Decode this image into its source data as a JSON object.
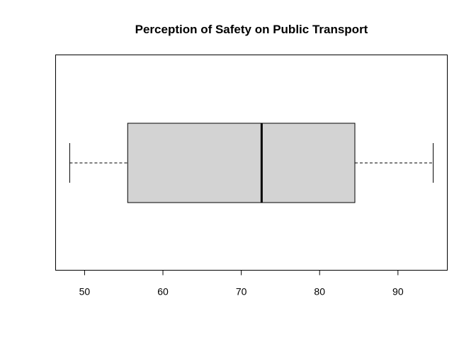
{
  "chart_data": {
    "type": "boxplot",
    "orientation": "horizontal",
    "title": "Perception of Safety on Public Transport",
    "xlabel": "",
    "ylabel": "",
    "xlim": [
      46.3,
      96.3
    ],
    "ticks": [
      50,
      60,
      70,
      80,
      90
    ],
    "tick_labels": [
      "50",
      "60",
      "70",
      "80",
      "90"
    ],
    "box": {
      "min": 48.1,
      "q1": 55.5,
      "median": 72.6,
      "q3": 84.5,
      "max": 94.5
    },
    "grid": false,
    "legend": false,
    "colors": {
      "box_fill": "#d3d3d3",
      "stroke": "#000000",
      "background": "#ffffff"
    }
  }
}
